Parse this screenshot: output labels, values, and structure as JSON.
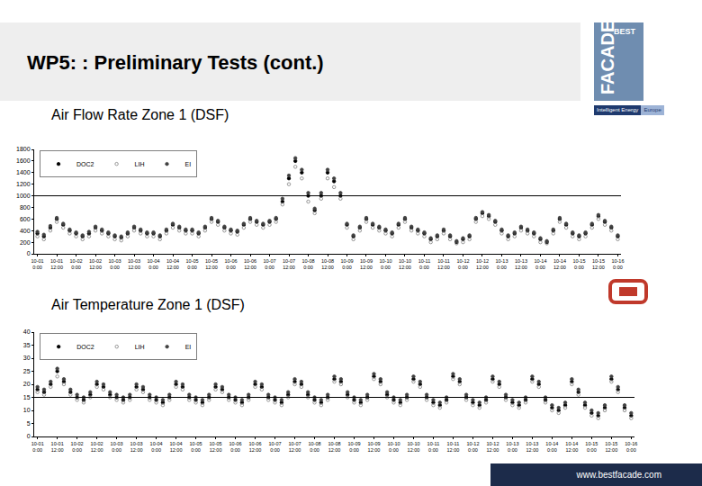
{
  "slide": {
    "title": "WP5: : Preliminary Tests (cont.)",
    "logo_top": "BEST",
    "logo_main": "FACADE",
    "banner": [
      "Intelligent Energy",
      "Europe"
    ],
    "footer": "www.bestfacade.com"
  },
  "chart_data": [
    {
      "type": "scatter",
      "title": "Air Flow Rate Zone 1 (DSF)",
      "legend": "top-left",
      "grid": false,
      "ylim": [
        0,
        1800
      ],
      "yticks": [
        0,
        200,
        400,
        600,
        800,
        1000,
        1200,
        1400,
        1600,
        1800
      ],
      "ref_line": 1000,
      "categories": [
        "10-01 0:00",
        null,
        null,
        "10-01 12:00",
        null,
        null,
        "10-02 0:00",
        null,
        null,
        "10-02 12:00",
        null,
        null,
        "10-03 0:00",
        null,
        null,
        "10-03 12:00",
        null,
        null,
        "10-04 0:00",
        null,
        null,
        "10-04 12:00",
        null,
        null,
        "10-05 0:00",
        null,
        null,
        "10-05 12:00",
        null,
        null,
        "10-06 0:00",
        null,
        null,
        "10-06 12:00",
        null,
        null,
        "10-07 0:00",
        null,
        null,
        "10-07 12:00",
        null,
        null,
        "10-08 0:00",
        null,
        null,
        "10-08 12:00",
        null,
        null,
        "10-09 0:00",
        null,
        null,
        "10-09 12:00",
        null,
        null,
        "10-10 0:00",
        null,
        null,
        "10-10 12:00",
        null,
        null,
        "10-11 0:00",
        null,
        null,
        "10-11 12:00",
        null,
        null,
        "10-12 0:00",
        null,
        null,
        "10-12 12:00",
        null,
        null,
        "10-13 0:00",
        null,
        null,
        "10-13 12:00",
        null,
        null,
        "10-14 0:00",
        null,
        null,
        "10-14 12:00",
        null,
        null,
        "10-15 0:00",
        null,
        null,
        "10-15 12:00",
        null,
        null,
        "10-16 0:00"
      ],
      "series": [
        {
          "name": "DOC2",
          "color": "#000000",
          "marker": "circle",
          "values": [
            350,
            300,
            450,
            600,
            500,
            400,
            350,
            300,
            350,
            450,
            400,
            350,
            300,
            280,
            350,
            450,
            400,
            350,
            350,
            300,
            400,
            500,
            450,
            400,
            400,
            350,
            450,
            600,
            550,
            450,
            400,
            380,
            500,
            600,
            550,
            500,
            550,
            600,
            900,
            1300,
            1600,
            1400,
            1000,
            750,
            1000,
            1400,
            1250,
            1000,
            500,
            300,
            450,
            600,
            500,
            450,
            400,
            350,
            500,
            600,
            450,
            400,
            350,
            250,
            300,
            400,
            300,
            200,
            250,
            300,
            600,
            700,
            650,
            550,
            400,
            300,
            350,
            450,
            400,
            350,
            250,
            200,
            400,
            600,
            500,
            350,
            300,
            350,
            500,
            650,
            550,
            450,
            300
          ]
        },
        {
          "name": "LIH",
          "color": "#808080",
          "marker": "circle-open",
          "values": [
            300,
            250,
            400,
            550,
            450,
            350,
            300,
            250,
            300,
            400,
            350,
            300,
            250,
            230,
            300,
            400,
            350,
            300,
            300,
            250,
            350,
            450,
            400,
            350,
            350,
            300,
            400,
            550,
            500,
            400,
            350,
            330,
            450,
            550,
            500,
            450,
            500,
            550,
            850,
            1200,
            1500,
            1300,
            900,
            700,
            950,
            1300,
            1150,
            950,
            450,
            250,
            400,
            550,
            450,
            400,
            350,
            300,
            450,
            550,
            400,
            350,
            300,
            200,
            250,
            350,
            250,
            180,
            200,
            250,
            550,
            650,
            600,
            500,
            350,
            250,
            300,
            400,
            350,
            300,
            200,
            180,
            350,
            550,
            450,
            300,
            250,
            300,
            450,
            600,
            500,
            400,
            250
          ]
        },
        {
          "name": "EI",
          "color": "#404040",
          "marker": "circle",
          "values": [
            380,
            330,
            480,
            620,
            520,
            420,
            370,
            320,
            380,
            470,
            420,
            370,
            320,
            300,
            370,
            470,
            420,
            370,
            370,
            320,
            420,
            520,
            470,
            420,
            420,
            370,
            470,
            620,
            570,
            470,
            420,
            400,
            520,
            620,
            570,
            520,
            570,
            620,
            950,
            1350,
            1650,
            1450,
            1050,
            780,
            1050,
            1450,
            1300,
            1050,
            520,
            320,
            470,
            620,
            520,
            470,
            420,
            370,
            520,
            620,
            470,
            420,
            370,
            270,
            320,
            420,
            320,
            220,
            270,
            320,
            620,
            720,
            670,
            570,
            420,
            320,
            370,
            470,
            420,
            370,
            270,
            220,
            420,
            620,
            520,
            370,
            320,
            370,
            520,
            670,
            570,
            470,
            320
          ]
        }
      ]
    },
    {
      "type": "scatter",
      "title": "Air Temperature Zone 1 (DSF)",
      "legend": "top-left",
      "grid": false,
      "ylim": [
        0,
        40
      ],
      "yticks": [
        0,
        5,
        10,
        15,
        20,
        25,
        30,
        35,
        40
      ],
      "ref_line": 15,
      "categories": [
        "10-01 0:00",
        null,
        null,
        "10-01 12:00",
        null,
        null,
        "10-02 0:00",
        null,
        null,
        "10-02 12:00",
        null,
        null,
        "10-03 0:00",
        null,
        null,
        "10-03 12:00",
        null,
        null,
        "10-04 0:00",
        null,
        null,
        "10-04 12:00",
        null,
        null,
        "10-05 0:00",
        null,
        null,
        "10-05 12:00",
        null,
        null,
        "10-06 0:00",
        null,
        null,
        "10-06 12:00",
        null,
        null,
        "10-07 0:00",
        null,
        null,
        "10-07 12:00",
        null,
        null,
        "10-08 0:00",
        null,
        null,
        "10-08 12:00",
        null,
        null,
        "10-09 0:00",
        null,
        null,
        "10-09 12:00",
        null,
        null,
        "10-10 0:00",
        null,
        null,
        "10-10 12:00",
        null,
        null,
        "10-11 0:00",
        null,
        null,
        "10-11 12:00",
        null,
        null,
        "10-12 0:00",
        null,
        null,
        "10-12 12:00",
        null,
        null,
        "10-13 0:00",
        null,
        null,
        "10-13 12:00",
        null,
        null,
        "10-14 0:00",
        null,
        null,
        "10-14 12:00",
        null,
        null,
        "10-15 0:00",
        null,
        null,
        "10-15 12:00",
        null,
        null,
        "10-16 0:00"
      ],
      "series": [
        {
          "name": "DOC2",
          "color": "#000000",
          "marker": "circle",
          "values": [
            18,
            17,
            20,
            25,
            21,
            17,
            15,
            14,
            16,
            20,
            19,
            16,
            15,
            14,
            15,
            19,
            18,
            15,
            14,
            13,
            15,
            20,
            19,
            15,
            14,
            13,
            15,
            19,
            18,
            15,
            14,
            13,
            15,
            20,
            19,
            15,
            14,
            13,
            16,
            21,
            20,
            16,
            14,
            13,
            15,
            22,
            21,
            16,
            14,
            13,
            15,
            23,
            21,
            16,
            14,
            13,
            15,
            22,
            20,
            15,
            13,
            12,
            14,
            23,
            21,
            15,
            13,
            12,
            14,
            22,
            20,
            15,
            13,
            12,
            14,
            22,
            20,
            14,
            11,
            10,
            12,
            21,
            17,
            12,
            9,
            8,
            11,
            22,
            18,
            11,
            8
          ]
        },
        {
          "name": "LIH",
          "color": "#808080",
          "marker": "circle-open",
          "values": [
            17,
            16,
            19,
            23,
            20,
            16,
            14,
            13,
            15,
            19,
            18,
            15,
            14,
            13,
            14,
            18,
            17,
            14,
            13,
            12,
            14,
            19,
            18,
            14,
            13,
            12,
            14,
            18,
            17,
            14,
            13,
            12,
            14,
            19,
            18,
            14,
            13,
            12,
            15,
            20,
            19,
            15,
            13,
            12,
            14,
            21,
            20,
            15,
            13,
            12,
            14,
            22,
            20,
            15,
            13,
            12,
            14,
            21,
            19,
            14,
            12,
            11,
            13,
            22,
            20,
            14,
            12,
            11,
            13,
            21,
            19,
            14,
            12,
            11,
            13,
            21,
            19,
            13,
            10,
            9,
            11,
            20,
            16,
            11,
            8,
            7,
            10,
            21,
            17,
            10,
            7
          ]
        },
        {
          "name": "EI",
          "color": "#404040",
          "marker": "circle",
          "values": [
            19,
            18,
            21,
            26,
            22,
            18,
            16,
            15,
            17,
            21,
            20,
            17,
            16,
            15,
            16,
            20,
            19,
            16,
            15,
            14,
            16,
            21,
            20,
            16,
            15,
            14,
            16,
            20,
            19,
            16,
            15,
            14,
            16,
            21,
            20,
            16,
            15,
            14,
            17,
            22,
            21,
            17,
            15,
            14,
            16,
            23,
            22,
            17,
            15,
            14,
            16,
            24,
            22,
            17,
            15,
            14,
            16,
            23,
            21,
            16,
            14,
            13,
            15,
            24,
            22,
            16,
            14,
            13,
            15,
            23,
            21,
            16,
            14,
            13,
            15,
            23,
            21,
            15,
            12,
            11,
            13,
            22,
            18,
            13,
            10,
            9,
            12,
            23,
            19,
            12,
            9
          ]
        }
      ]
    }
  ]
}
